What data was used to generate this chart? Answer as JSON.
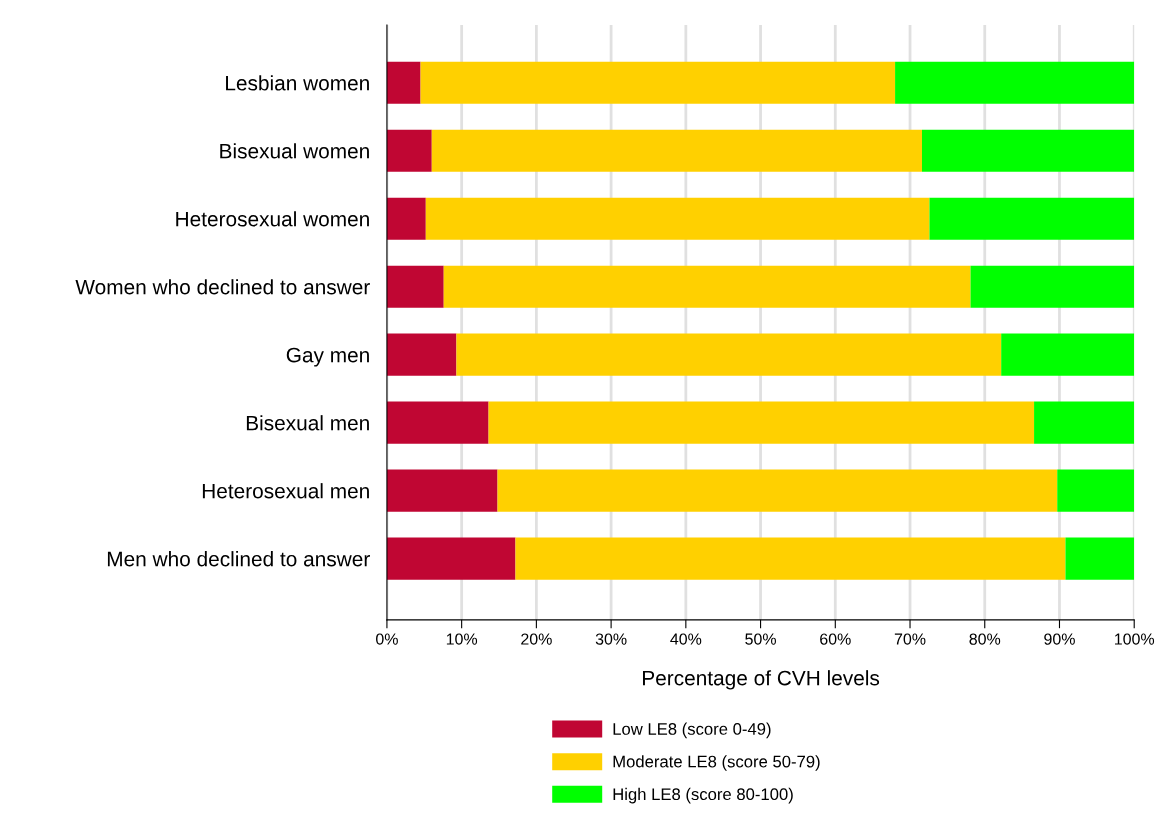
{
  "chart_data": {
    "type": "bar",
    "orientation": "horizontal",
    "stacked": true,
    "xlabel": "Percentage of CVH levels",
    "categories": [
      "Lesbian women",
      "Bisexual women",
      "Heterosexual women",
      "Women who declined to answer",
      "Gay men",
      "Bisexual men",
      "Heterosexual men",
      "Men who declined to answer"
    ],
    "series": [
      {
        "name": "Low LE8 (score 0-49)",
        "color": "#c00633",
        "values": [
          4.5,
          6.0,
          5.2,
          7.6,
          9.3,
          13.6,
          14.8,
          17.2
        ]
      },
      {
        "name": "Moderate LE8 (score 50-79)",
        "color": "#ffd000",
        "values": [
          63.5,
          65.6,
          67.4,
          70.5,
          72.9,
          73.0,
          74.9,
          73.6
        ]
      },
      {
        "name": "High LE8 (score 80-100)",
        "color": "#00ff00",
        "values": [
          32.0,
          28.4,
          27.4,
          21.9,
          17.8,
          13.4,
          10.3,
          9.2
        ]
      }
    ],
    "xlim": [
      0,
      100
    ],
    "xticks": [
      {
        "value": 0,
        "label": "0%"
      },
      {
        "value": 10,
        "label": "10%"
      },
      {
        "value": 20,
        "label": "20%"
      },
      {
        "value": 30,
        "label": "30%"
      },
      {
        "value": 40,
        "label": "40%"
      },
      {
        "value": 50,
        "label": "50%"
      },
      {
        "value": 60,
        "label": "60%"
      },
      {
        "value": 70,
        "label": "70%"
      },
      {
        "value": 80,
        "label": "80%"
      },
      {
        "value": 90,
        "label": "90%"
      },
      {
        "value": 100,
        "label": "100%"
      }
    ],
    "grid": "x",
    "legend": "bottom"
  }
}
